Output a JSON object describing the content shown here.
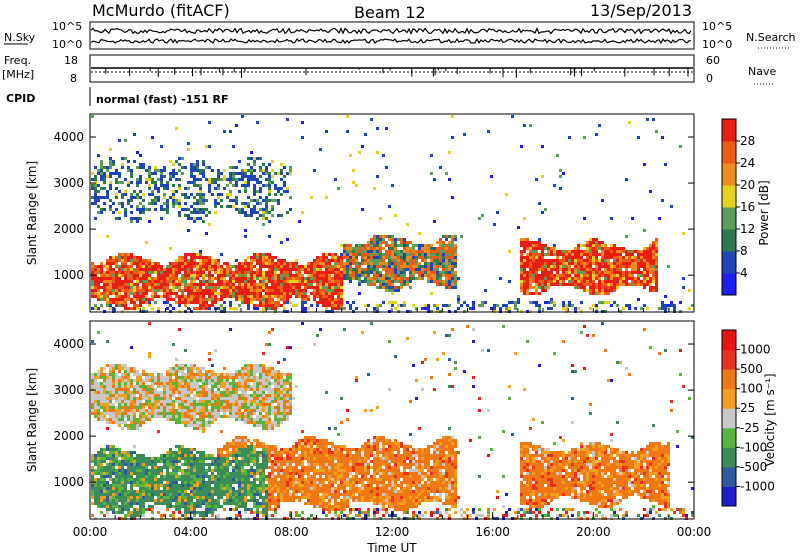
{
  "header": {
    "station": "McMurdo (fitACF)",
    "beam": "Beam 12",
    "date": "13/Sep/2013"
  },
  "sidebar_left": {
    "nsky_label": "N.Sky",
    "nsky_ticks": [
      "10^5",
      "10^0"
    ],
    "freq_label_line1": "Freq.",
    "freq_label_line2": "[MHz]",
    "freq_ticks": [
      "18",
      "8"
    ],
    "cpid_label": "CPID"
  },
  "sidebar_right": {
    "nsearch_label": "N.Search",
    "nsearch_ticks": [
      "10^5",
      "10^0"
    ],
    "nave_label": "Nave",
    "nave_ticks": [
      "60",
      "0"
    ]
  },
  "cpid_text": "normal (fast) -151 RF",
  "colors": {
    "power_scale": [
      "#1e1ef0",
      "#1e46b4",
      "#2e7a4e",
      "#5a9e5a",
      "#e6d21e",
      "#f08c1e",
      "#f05a14",
      "#e61e14"
    ],
    "velocity_scale": [
      "#1e1ec8",
      "#2e5aa0",
      "#3c8c5a",
      "#5ab43c",
      "#c8c8c8",
      "#f0a01e",
      "#f07814",
      "#e6321e",
      "#e61414"
    ]
  },
  "chart_data": [
    {
      "type": "heatmap",
      "name": "power",
      "xlabel": "Time UT",
      "ylabel": "Slant Range [km]",
      "xlim": [
        0,
        24
      ],
      "ylim": [
        200,
        4500
      ],
      "x_tick_labels": [
        "00:00",
        "04:00",
        "08:00",
        "12:00",
        "16:00",
        "20:00",
        "00:00"
      ],
      "x_tick_values": [
        0,
        4,
        8,
        12,
        16,
        20,
        24
      ],
      "y_ticks": [
        1000,
        2000,
        3000,
        4000
      ],
      "colorbar": {
        "label": "Power [dB]",
        "ticks": [
          4,
          8,
          12,
          16,
          20,
          24,
          28
        ],
        "range": [
          0,
          30
        ]
      },
      "features": [
        {
          "t0": 0.0,
          "t1": 10.0,
          "r0": 400,
          "r1": 1400,
          "level": "high"
        },
        {
          "t0": 10.0,
          "t1": 14.5,
          "r0": 800,
          "r1": 1800,
          "level": "medium"
        },
        {
          "t0": 17.0,
          "t1": 22.5,
          "r0": 700,
          "r1": 1700,
          "level": "high"
        },
        {
          "t0": 0.0,
          "t1": 8.0,
          "r0": 2300,
          "r1": 3500,
          "level": "low"
        }
      ]
    },
    {
      "type": "heatmap",
      "name": "velocity",
      "xlabel": "Time UT",
      "ylabel": "Slant Range [km]",
      "xlim": [
        0,
        24
      ],
      "ylim": [
        200,
        4500
      ],
      "x_tick_labels": [
        "00:00",
        "04:00",
        "08:00",
        "12:00",
        "16:00",
        "20:00",
        "00:00"
      ],
      "x_tick_values": [
        0,
        4,
        8,
        12,
        16,
        20,
        24
      ],
      "y_ticks": [
        1000,
        2000,
        3000,
        4000
      ],
      "colorbar": {
        "label": "Velocity [m s⁻¹]",
        "ticks": [
          "1000",
          "500",
          "100",
          "25",
          "-25",
          "-100",
          "-500",
          "-1000"
        ]
      },
      "features": [
        {
          "t0": 0.0,
          "t1": 7.0,
          "r0": 400,
          "r1": 1700,
          "level": "green"
        },
        {
          "t0": 5.0,
          "t1": 14.5,
          "r0": 500,
          "r1": 1900,
          "level": "orange"
        },
        {
          "t0": 17.0,
          "t1": 23.0,
          "r0": 600,
          "r1": 1800,
          "level": "orange"
        },
        {
          "t0": 0.0,
          "t1": 8.0,
          "r0": 2300,
          "r1": 3500,
          "level": "mixed"
        }
      ]
    }
  ]
}
